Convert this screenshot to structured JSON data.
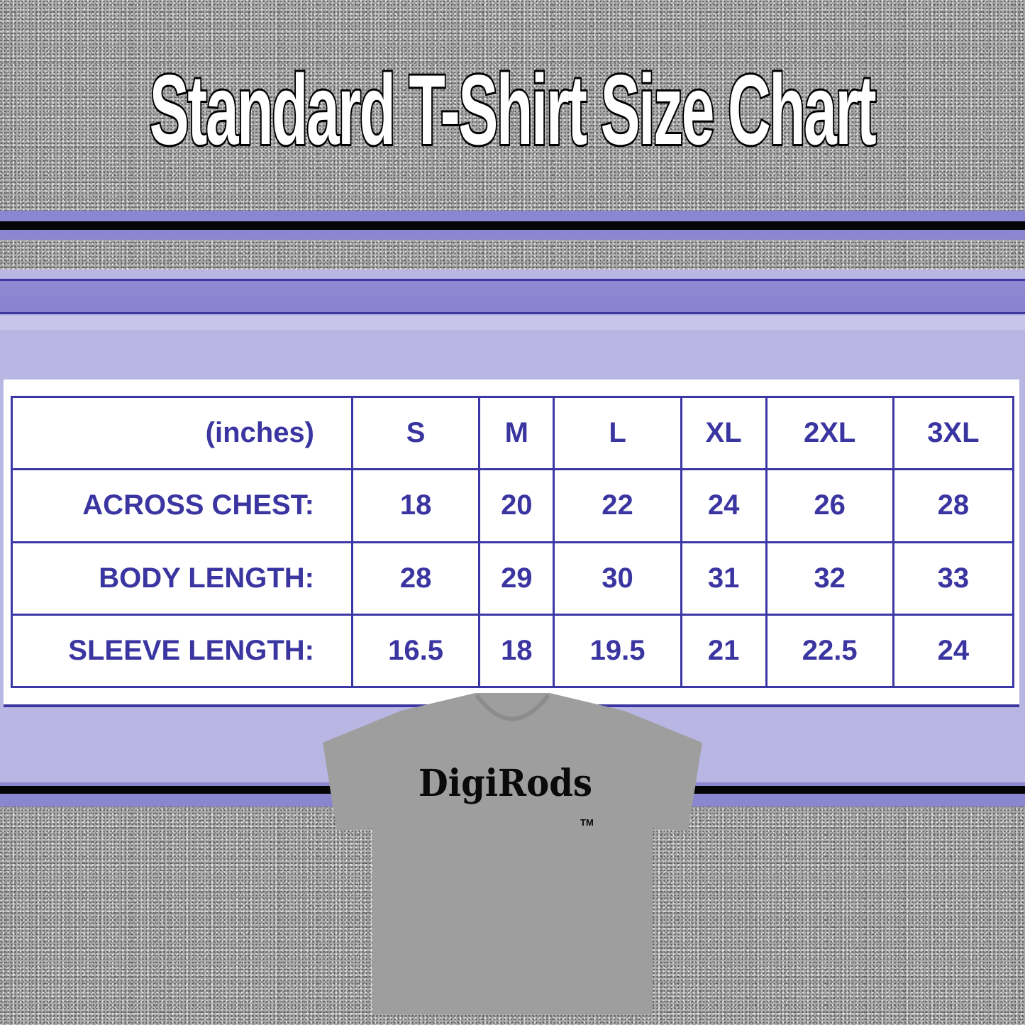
{
  "title": "Standard T-Shirt Size Chart",
  "colors": {
    "accent_purple": "#8b86d0",
    "table_blue": "#3a35a0",
    "panel_lavender": "#bab6e4",
    "shirt_gray": "#9e9e9e"
  },
  "table": {
    "unit_header": "(inches)",
    "sizes": [
      "S",
      "M",
      "L",
      "XL",
      "2XL",
      "3XL"
    ],
    "rows": [
      {
        "label": "ACROSS CHEST:",
        "values": [
          "18",
          "20",
          "22",
          "24",
          "26",
          "28"
        ]
      },
      {
        "label": "BODY LENGTH:",
        "values": [
          "28",
          "29",
          "30",
          "31",
          "32",
          "33"
        ]
      },
      {
        "label": "SLEEVE LENGTH:",
        "values": [
          "16.5",
          "18",
          "19.5",
          "21",
          "22.5",
          "24"
        ]
      }
    ]
  },
  "shirt": {
    "logo": "DigiRods",
    "trademark": "TM"
  }
}
